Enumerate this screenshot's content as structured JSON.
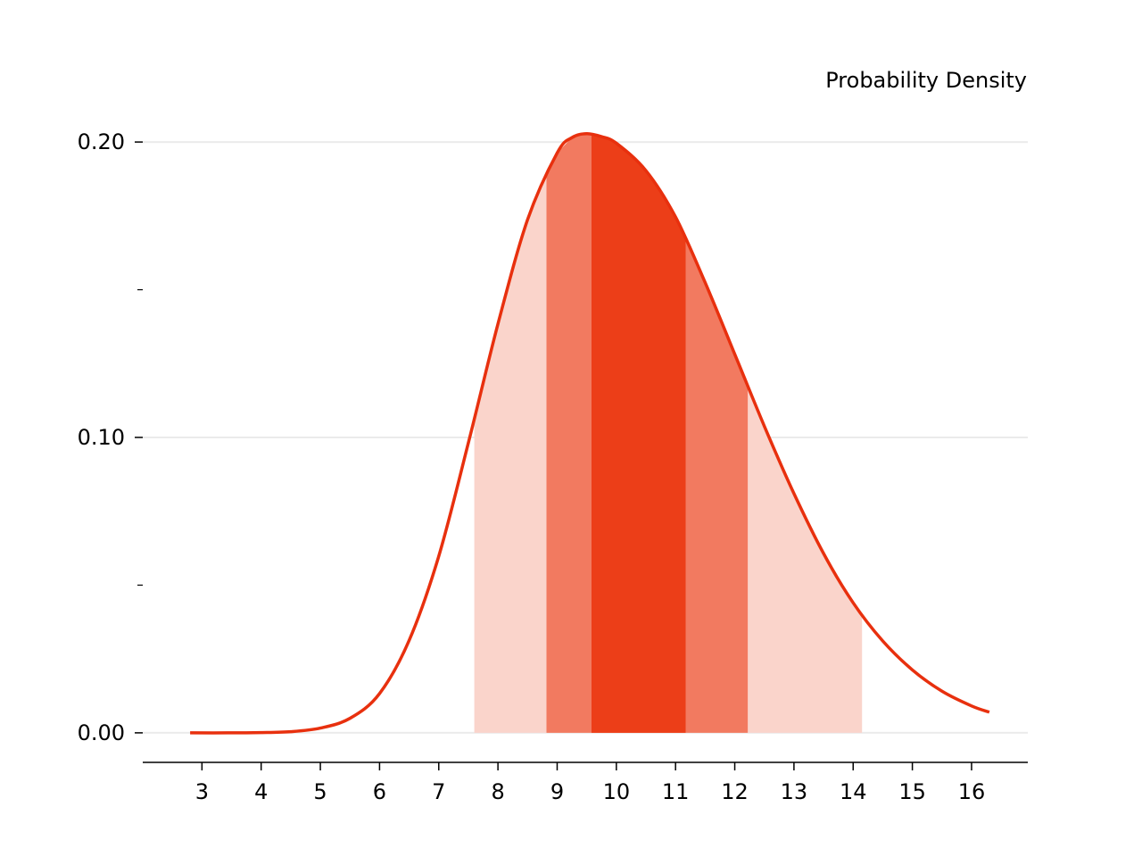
{
  "chart_data": {
    "type": "area",
    "title": "",
    "xlabel": "",
    "ylabel": "Probability Density",
    "xlim": [
      2.0,
      16.95
    ],
    "ylim": [
      -0.01,
      0.21
    ],
    "x_ticks": [
      3,
      4,
      5,
      6,
      7,
      8,
      9,
      10,
      11,
      12,
      13,
      14,
      15,
      16
    ],
    "x_tick_labels": [
      "3",
      "4",
      "5",
      "6",
      "7",
      "8",
      "9",
      "10",
      "11",
      "12",
      "13",
      "14",
      "15",
      "16"
    ],
    "y_major_ticks": [
      0.0,
      0.1,
      0.2
    ],
    "y_major_tick_labels": [
      "0.00",
      "0.10",
      "0.20"
    ],
    "y_minor_ticks": [
      0.05,
      0.15
    ],
    "grid": "horizontal",
    "series": [
      {
        "x": [
          2.8,
          3.5,
          4.0,
          4.5,
          5.0,
          5.5,
          6.0,
          6.5,
          7.0,
          7.5,
          8.0,
          8.5,
          9.0,
          9.25,
          9.5,
          9.75,
          10.0,
          10.5,
          11.0,
          11.5,
          12.0,
          12.5,
          13.0,
          13.5,
          14.0,
          14.5,
          15.0,
          15.5,
          16.0,
          16.3
        ],
        "y": [
          0.0,
          0.0,
          0.0001,
          0.0004,
          0.0016,
          0.0049,
          0.0133,
          0.0313,
          0.0598,
          0.0981,
          0.1384,
          0.1737,
          0.1963,
          0.2015,
          0.2028,
          0.2018,
          0.1996,
          0.1903,
          0.1746,
          0.1524,
          0.1282,
          0.1038,
          0.081,
          0.0607,
          0.044,
          0.0311,
          0.0213,
          0.0141,
          0.0091,
          0.007
        ]
      }
    ],
    "bands": [
      {
        "from": 7.6,
        "to": 14.15,
        "color": "#fad4cb",
        "opacity": 1
      },
      {
        "from": 8.82,
        "to": 12.22,
        "color": "#f27a60",
        "opacity": 1
      },
      {
        "from": 9.58,
        "to": 11.17,
        "color": "#ec3e18",
        "opacity": 1
      }
    ],
    "colors": {
      "line": "#e8300e",
      "grid": "#ebebeb"
    }
  }
}
